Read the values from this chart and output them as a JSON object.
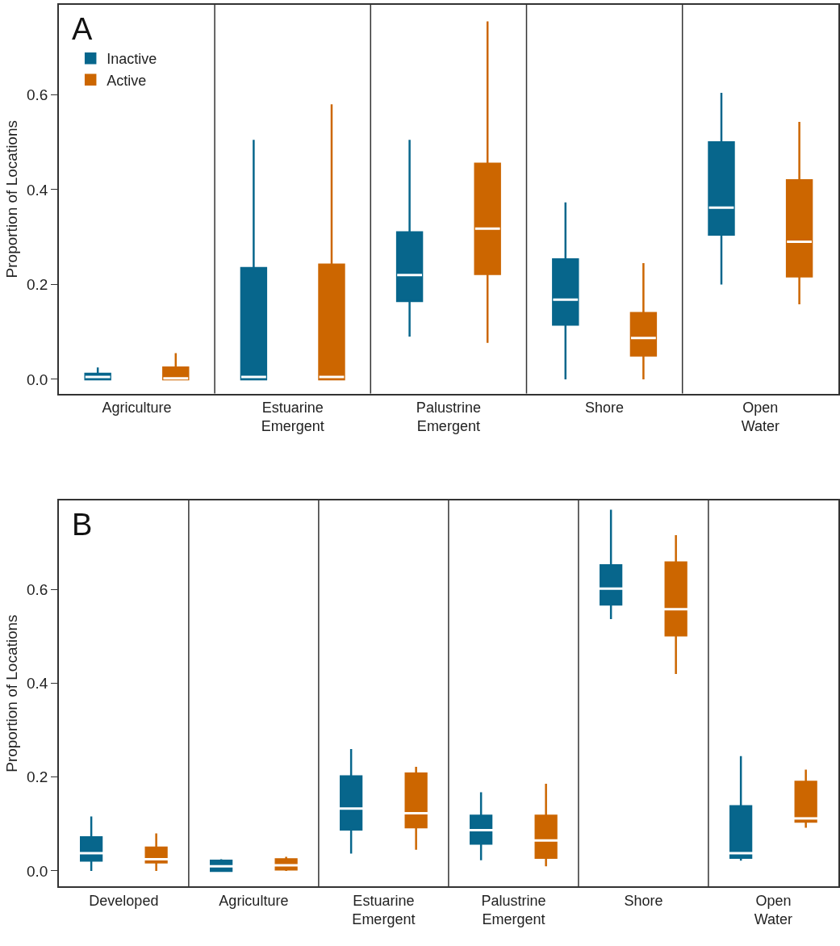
{
  "chart_data": [
    {
      "type": "box",
      "title": "A",
      "ylabel": "Proportion of Locations",
      "categories": [
        "Agriculture",
        "Estuarine Emergent",
        "Palustrine Emergent",
        "Shore",
        "Open Water"
      ],
      "ylim": [
        -0.03,
        0.79
      ],
      "yticks": [
        {
          "value": 0,
          "label": "0.0"
        },
        0.2,
        0.4,
        0.6
      ],
      "legend": "top left",
      "series": [
        {
          "name": "Inactive",
          "color": "#07668c",
          "boxes": [
            {
              "low": 0,
              "q1": 0,
              "median": 0.005,
              "q3": 0.012,
              "high": 0.025
            },
            {
              "low": 0,
              "q1": 0,
              "median": 0.005,
              "q3": 0.235,
              "high": 0.505
            },
            {
              "low": 0.09,
              "q1": 0.165,
              "median": 0.22,
              "q3": 0.31,
              "high": 0.505
            },
            {
              "low": 0,
              "q1": 0.115,
              "median": 0.168,
              "q3": 0.253,
              "high": 0.373
            },
            {
              "low": 0.2,
              "q1": 0.305,
              "median": 0.362,
              "q3": 0.5,
              "high": 0.604
            }
          ]
        },
        {
          "name": "Active",
          "color": "#cc6600",
          "boxes": [
            {
              "low": 0,
              "q1": 0,
              "median": 0.002,
              "q3": 0.025,
              "high": 0.055
            },
            {
              "low": 0,
              "q1": 0,
              "median": 0.005,
              "q3": 0.242,
              "high": 0.58
            },
            {
              "low": 0.077,
              "q1": 0.222,
              "median": 0.318,
              "q3": 0.455,
              "high": 0.755
            },
            {
              "low": 0,
              "q1": 0.05,
              "median": 0.087,
              "q3": 0.14,
              "high": 0.245
            },
            {
              "low": 0.158,
              "q1": 0.217,
              "median": 0.29,
              "q3": 0.42,
              "high": 0.543
            }
          ]
        }
      ]
    },
    {
      "type": "box",
      "title": "B",
      "ylabel": "Proportion of Locations",
      "categories": [
        "Developed",
        "Agriculture",
        "Estuarine Emergent",
        "Palustrine Emergent",
        "Shore",
        "Open Water"
      ],
      "ylim": [
        -0.033,
        0.79
      ],
      "yticks": [
        {
          "value": 0,
          "label": "0.0"
        },
        0.2,
        0.4,
        0.6
      ],
      "series": [
        {
          "color": "#07668c",
          "boxes": [
            {
              "low": 0,
              "q1": 0.022,
              "median": 0.038,
              "q3": 0.072,
              "high": 0.116
            },
            {
              "low": 0,
              "q1": 0,
              "median": 0.01,
              "q3": 0.022,
              "high": 0.025
            },
            {
              "low": 0.037,
              "q1": 0.088,
              "median": 0.133,
              "q3": 0.202,
              "high": 0.26
            },
            {
              "low": 0.023,
              "q1": 0.058,
              "median": 0.087,
              "q3": 0.118,
              "high": 0.168
            },
            {
              "low": 0.537,
              "q1": 0.568,
              "median": 0.602,
              "q3": 0.652,
              "high": 0.77
            },
            {
              "low": 0.022,
              "q1": 0.028,
              "median": 0.038,
              "q3": 0.138,
              "high": 0.245
            }
          ]
        },
        {
          "color": "#cc6600",
          "boxes": [
            {
              "low": 0,
              "q1": 0.018,
              "median": 0.025,
              "q3": 0.05,
              "high": 0.08
            },
            {
              "low": 0,
              "q1": 0.003,
              "median": 0.012,
              "q3": 0.025,
              "high": 0.03
            },
            {
              "low": 0.045,
              "q1": 0.093,
              "median": 0.123,
              "q3": 0.208,
              "high": 0.222
            },
            {
              "low": 0.01,
              "q1": 0.028,
              "median": 0.065,
              "q3": 0.118,
              "high": 0.186
            },
            {
              "low": 0.42,
              "q1": 0.502,
              "median": 0.558,
              "q3": 0.658,
              "high": 0.716
            },
            {
              "low": 0.092,
              "q1": 0.105,
              "median": 0.112,
              "q3": 0.19,
              "high": 0.216
            }
          ]
        }
      ]
    }
  ]
}
